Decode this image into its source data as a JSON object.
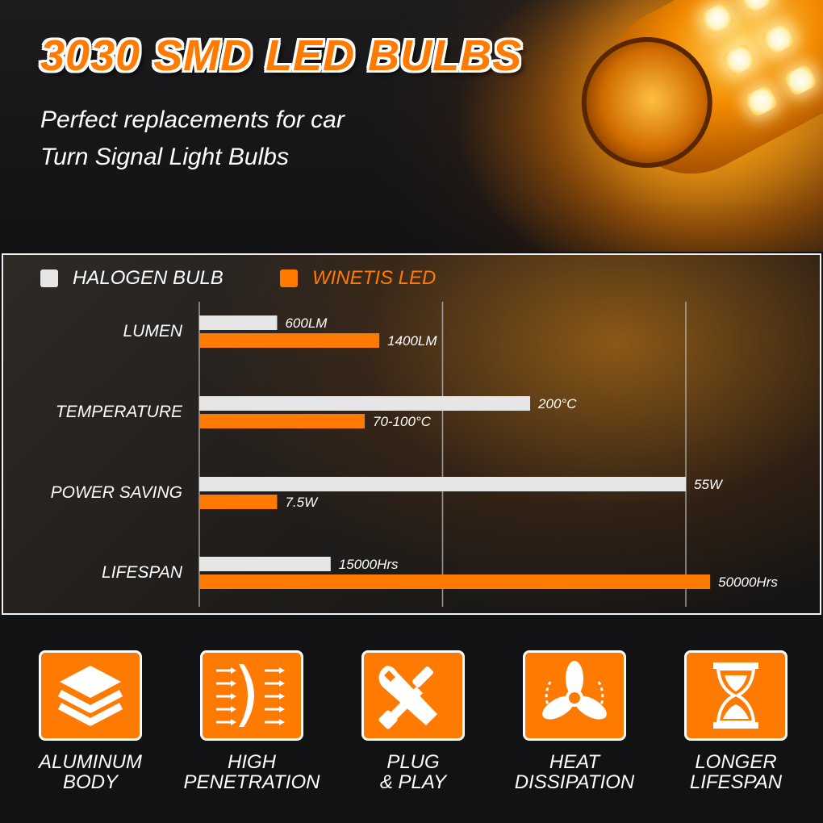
{
  "header": {
    "title": "3030 SMD LED BULBS",
    "subtitle_line1": "Perfect replacements for car",
    "subtitle_line2": "Turn Signal Light Bulbs"
  },
  "colors": {
    "accent": "#ff7a00",
    "halogen": "#e6e6e6",
    "text": "#ffffff"
  },
  "chart_data": {
    "type": "bar",
    "orientation": "horizontal",
    "normalized": true,
    "legend_placement": "top-left",
    "grid": true,
    "series": [
      {
        "name": "HALOGEN BULB",
        "color": "#e6e6e6",
        "values": [
          0.16,
          0.68,
          1.0,
          0.27
        ],
        "labels": [
          "600LM",
          "200°C",
          "55W",
          "15000Hrs"
        ]
      },
      {
        "name": "WINETIS LED",
        "color": "#ff7a00",
        "values": [
          0.37,
          0.34,
          0.16,
          1.05
        ],
        "labels": [
          "1400LM",
          "70-100°C",
          "7.5W",
          "50000Hrs"
        ]
      }
    ],
    "categories": [
      "LUMEN",
      "TEMPERATURE",
      "POWER SAVING",
      "LIFESPAN"
    ],
    "xlim": [
      0,
      1
    ]
  },
  "features": [
    {
      "icon": "layers-icon",
      "line1": "ALUMINUM",
      "line2": "BODY"
    },
    {
      "icon": "lens-arrows-icon",
      "line1": "HIGH",
      "line2": "PENETRATION"
    },
    {
      "icon": "wrench-screwdriver-icon",
      "line1": "PLUG",
      "line2": "& PLAY"
    },
    {
      "icon": "fan-icon",
      "line1": "HEAT",
      "line2": "DISSIPATION"
    },
    {
      "icon": "hourglass-icon",
      "line1": "LONGER",
      "line2": "LIFESPAN"
    }
  ]
}
